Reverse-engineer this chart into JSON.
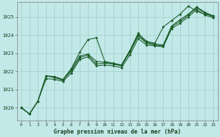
{
  "title": "Graphe pression niveau de la mer (hPa)",
  "bg_color": "#c2e8e8",
  "grid_color": "#a8d4d4",
  "line_color": "#1a5c28",
  "marker_color": "#1a5c28",
  "xlim": [
    -0.5,
    23.5
  ],
  "ylim": [
    1019.3,
    1025.8
  ],
  "yticks": [
    1020,
    1021,
    1022,
    1023,
    1024,
    1025
  ],
  "xticks": [
    0,
    1,
    2,
    3,
    4,
    5,
    6,
    7,
    8,
    9,
    10,
    11,
    12,
    13,
    14,
    15,
    16,
    17,
    18,
    19,
    20,
    21,
    22,
    23
  ],
  "series": [
    [
      1020.0,
      1019.65,
      1020.35,
      1021.75,
      1021.7,
      1021.55,
      1022.15,
      1023.05,
      1023.75,
      1023.85,
      1022.55,
      1022.45,
      1022.35,
      1023.15,
      1024.1,
      1023.65,
      1023.55,
      1024.45,
      1024.8,
      1025.15,
      1025.6,
      1025.3,
      1025.15,
      1025.05
    ],
    [
      1020.0,
      1019.65,
      1020.35,
      1021.75,
      1021.65,
      1021.5,
      1022.1,
      1022.85,
      1022.95,
      1022.55,
      1022.5,
      1022.4,
      1022.35,
      1023.1,
      1024.0,
      1023.6,
      1023.5,
      1023.45,
      1024.5,
      1024.85,
      1025.15,
      1025.55,
      1025.25,
      1025.05
    ],
    [
      1020.0,
      1019.65,
      1020.35,
      1021.75,
      1021.7,
      1021.55,
      1022.0,
      1022.75,
      1022.9,
      1022.4,
      1022.45,
      1022.4,
      1022.3,
      1023.05,
      1023.95,
      1023.55,
      1023.45,
      1023.4,
      1024.45,
      1024.75,
      1025.1,
      1025.5,
      1025.2,
      1025.0
    ],
    [
      1020.0,
      1019.65,
      1020.35,
      1021.6,
      1021.55,
      1021.45,
      1021.9,
      1022.65,
      1022.8,
      1022.3,
      1022.35,
      1022.3,
      1022.2,
      1022.9,
      1023.8,
      1023.45,
      1023.4,
      1023.35,
      1024.35,
      1024.65,
      1025.0,
      1025.4,
      1025.1,
      1024.95
    ]
  ]
}
